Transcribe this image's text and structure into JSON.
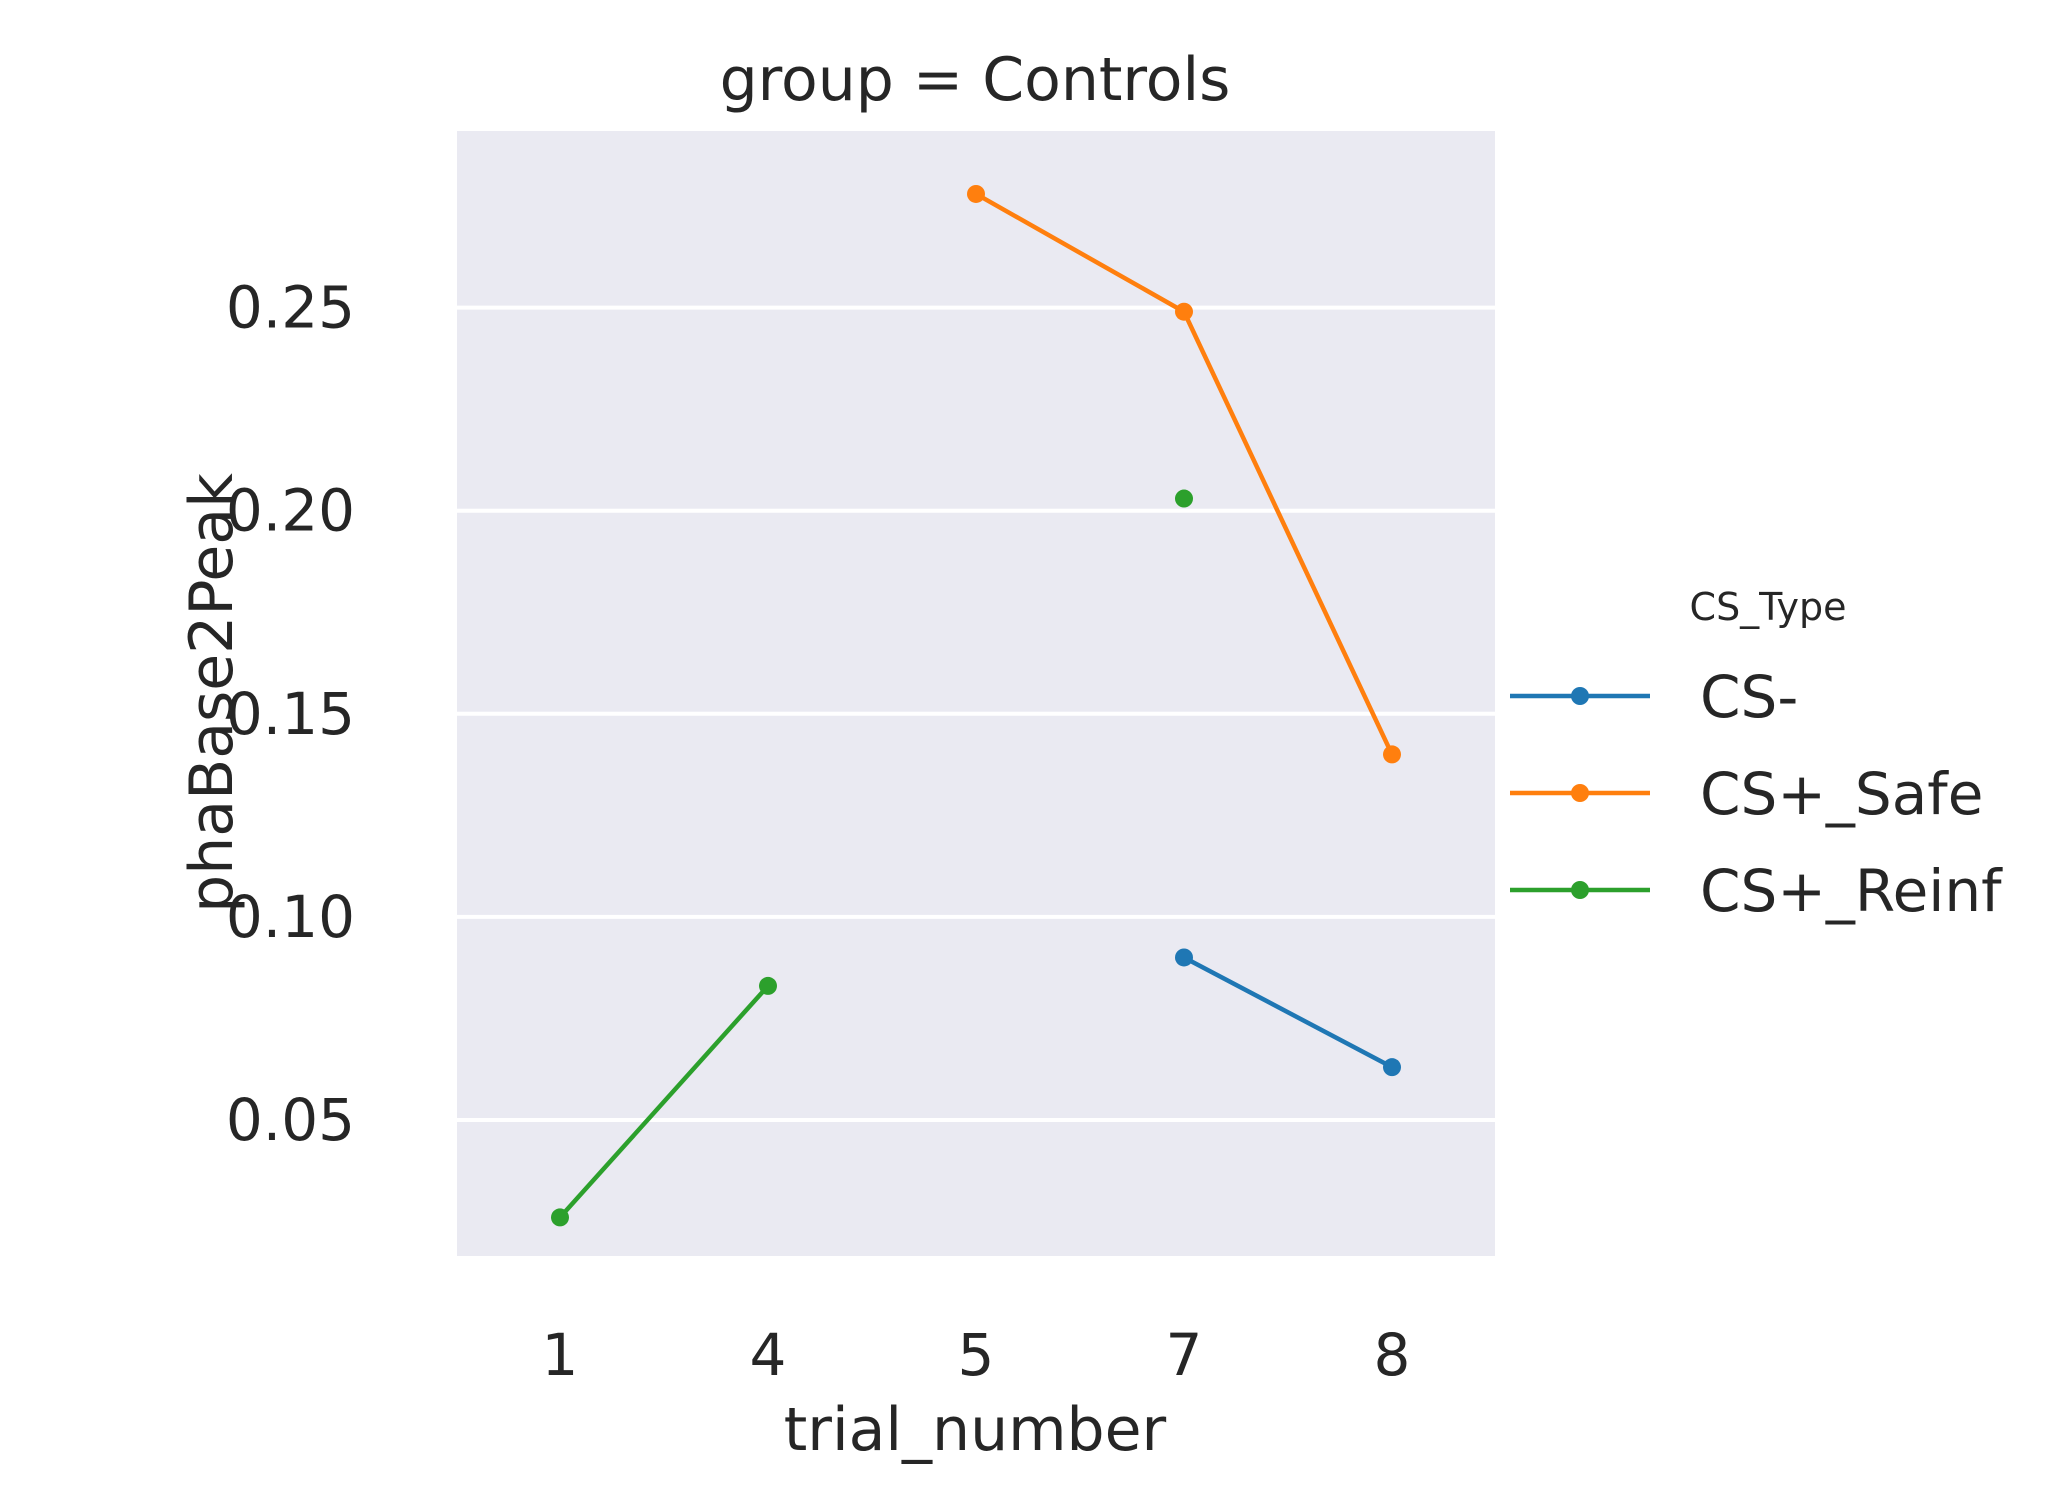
{
  "chart_data": {
    "type": "line",
    "title": "group = Controls",
    "xlabel": "trial_number",
    "ylabel": "phaBase2Peak",
    "categories": [
      "1",
      "4",
      "5",
      "7",
      "8"
    ],
    "yticks": [
      "0.05",
      "0.10",
      "0.15",
      "0.20",
      "0.25"
    ],
    "ylim": [
      0.0165,
      0.2935
    ],
    "grid": true,
    "legend": {
      "title": "CS_Type",
      "placement": "outside-right"
    },
    "series": [
      {
        "name": "CS-",
        "color": "#1f77b4",
        "points": [
          {
            "x": "7",
            "y": 0.09
          },
          {
            "x": "8",
            "y": 0.063
          }
        ]
      },
      {
        "name": "CS+_Safe",
        "color": "#ff7f0e",
        "points": [
          {
            "x": "5",
            "y": 0.278
          },
          {
            "x": "7",
            "y": 0.249
          },
          {
            "x": "8",
            "y": 0.14
          }
        ]
      },
      {
        "name": "CS+_Reinf",
        "color": "#2ca02c",
        "points": [
          {
            "x": "1",
            "y": 0.026
          },
          {
            "x": "4",
            "y": 0.083
          }
        ],
        "isolated_points": [
          {
            "x": "7",
            "y": 0.203
          }
        ]
      }
    ]
  }
}
